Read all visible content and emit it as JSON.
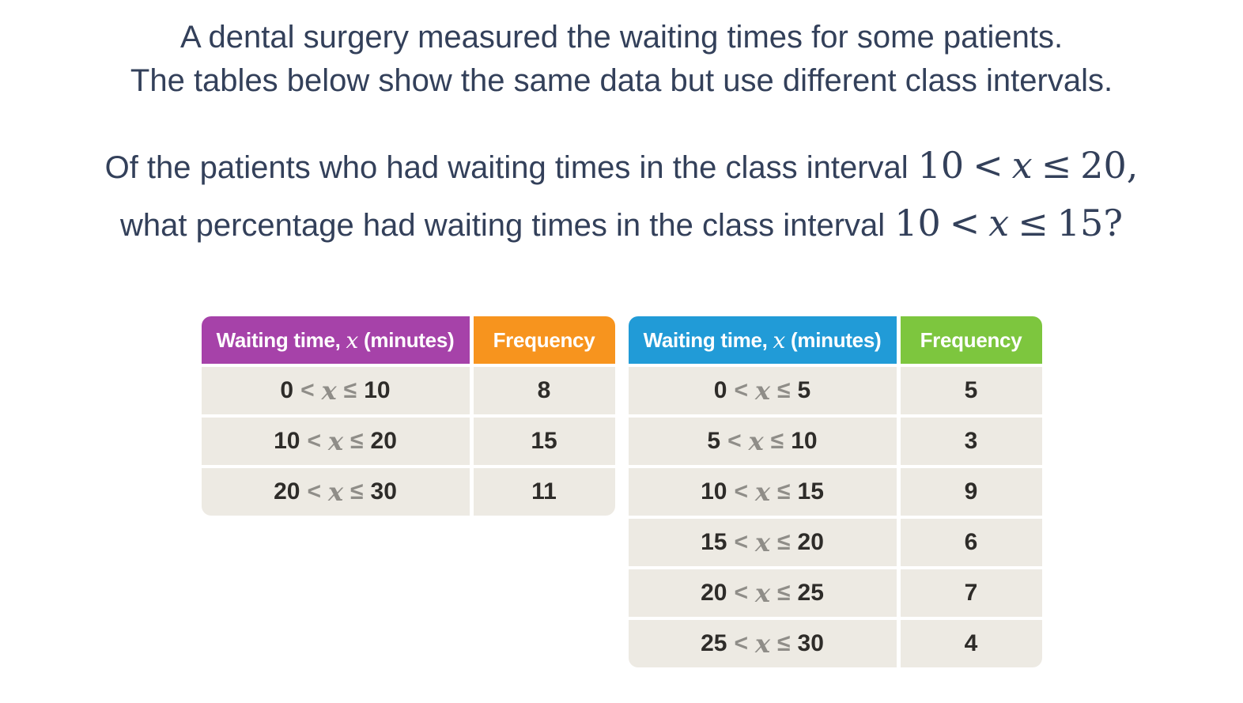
{
  "symbols": {
    "lt": "<",
    "leq": "≤",
    "var": "x"
  },
  "question": {
    "intro_line1": "A dental surgery measured the waiting times for some patients.",
    "intro_line2": "The tables below show the same data but use different class intervals.",
    "ask_line1_prefix": "Of the patients who had waiting times in the class interval",
    "ask_line1_math": {
      "lower": "10",
      "upper": "20"
    },
    "ask_line1_suffix": ",",
    "ask_line2_prefix": "what percentage had waiting times in the class interval",
    "ask_line2_math": {
      "lower": "10",
      "upper": "15"
    },
    "ask_line2_suffix": "?"
  },
  "tables": [
    {
      "interval_header": {
        "prefix": "Waiting time,",
        "var": "x",
        "suffix": "(minutes)",
        "bg": "#a642a9"
      },
      "frequency_header": {
        "label": "Frequency",
        "bg": "#f7941e"
      },
      "rows": [
        {
          "lower": "0",
          "upper": "10",
          "frequency": "8"
        },
        {
          "lower": "10",
          "upper": "20",
          "frequency": "15"
        },
        {
          "lower": "20",
          "upper": "30",
          "frequency": "11"
        }
      ]
    },
    {
      "interval_header": {
        "prefix": "Waiting time,",
        "var": "x",
        "suffix": "(minutes)",
        "bg": "#219bd7"
      },
      "frequency_header": {
        "label": "Frequency",
        "bg": "#7dc63e"
      },
      "rows": [
        {
          "lower": "0",
          "upper": "5",
          "frequency": "5"
        },
        {
          "lower": "5",
          "upper": "10",
          "frequency": "3"
        },
        {
          "lower": "10",
          "upper": "15",
          "frequency": "9"
        },
        {
          "lower": "15",
          "upper": "20",
          "frequency": "6"
        },
        {
          "lower": "20",
          "upper": "25",
          "frequency": "7"
        },
        {
          "lower": "25",
          "upper": "30",
          "frequency": "4"
        }
      ]
    }
  ],
  "colors": {
    "question_text": "#33405a",
    "row_bg": "#edeae3",
    "cell_number": "#2e2c29",
    "operator_gray": "#8f8d88",
    "header_text": "#ffffff"
  },
  "chart_data": [
    {
      "type": "table",
      "columns": [
        "Waiting time, x (minutes)",
        "Frequency"
      ],
      "rows": [
        [
          "0 < x ≤ 10",
          8
        ],
        [
          "10 < x ≤ 20",
          15
        ],
        [
          "20 < x ≤ 30",
          11
        ]
      ]
    },
    {
      "type": "table",
      "columns": [
        "Waiting time, x (minutes)",
        "Frequency"
      ],
      "rows": [
        [
          "0 < x ≤ 5",
          5
        ],
        [
          "5 < x ≤ 10",
          3
        ],
        [
          "10 < x ≤ 15",
          9
        ],
        [
          "15 < x ≤ 20",
          6
        ],
        [
          "20 < x ≤ 25",
          7
        ],
        [
          "25 < x ≤ 30",
          4
        ]
      ]
    }
  ]
}
